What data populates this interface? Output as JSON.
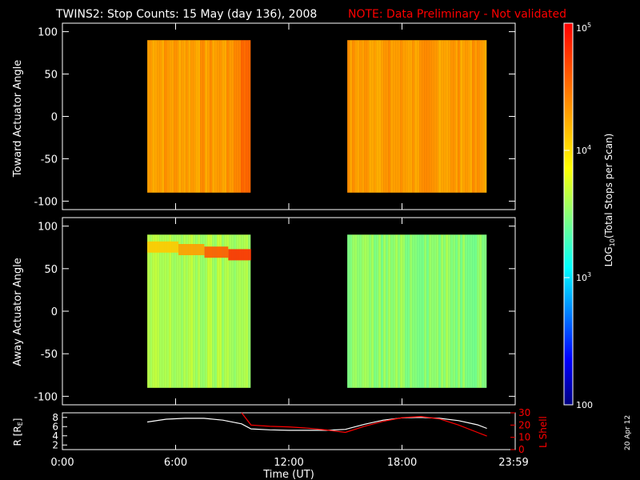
{
  "title_main": "TWINS2: Stop Counts: 15 May (day 136), 2008",
  "title_note": "NOTE: Data Preliminary - Not validated",
  "datestamp": "20 Apr 12",
  "colors": {
    "note": "#ff0000",
    "lshell": "#ff0000",
    "radius": "#ffffff",
    "frame": "#ffffff"
  },
  "chart_data": [
    {
      "type": "heatmap",
      "ylabel": "Toward Actuator Angle",
      "ylim": [
        -110,
        110
      ],
      "yticks": [
        "100",
        "50",
        "0",
        "-50",
        "-100"
      ],
      "xlim": [
        0,
        24
      ],
      "coverage_hours": [
        [
          4.5,
          10.0
        ],
        [
          15.1,
          22.5
        ]
      ],
      "angle_range": [
        -90,
        90
      ],
      "dominant_log10_counts": 4.3
    },
    {
      "type": "heatmap",
      "ylabel": "Away Actuator Angle",
      "ylim": [
        -110,
        110
      ],
      "yticks": [
        "100",
        "50",
        "0",
        "-50",
        "-100"
      ],
      "xlim": [
        0,
        24
      ],
      "coverage_hours": [
        [
          4.5,
          10.0
        ],
        [
          15.1,
          22.5
        ]
      ],
      "angle_range": [
        -90,
        90
      ],
      "dominant_log10_counts": 3.6
    },
    {
      "type": "line",
      "xlabel": "Time (UT)",
      "xticks": [
        "0:00",
        "6:00",
        "12:00",
        "18:00",
        "23:59"
      ],
      "ylabel_left": "R [R",
      "ylabel_left_sub": "E",
      "ylabel_left_end": "]",
      "yticks_left": [
        "8",
        "6",
        "4",
        "2"
      ],
      "ylabel_right": "L Shell",
      "yticks_right": [
        "30",
        "20",
        "10",
        "0"
      ],
      "ylim_left": [
        1,
        9
      ],
      "ylim_right": [
        0,
        30
      ],
      "series": [
        {
          "axis": "left",
          "x": [
            4.5,
            5.5,
            6.5,
            7.5,
            8.5,
            9.5,
            10.0,
            11,
            12,
            13,
            14,
            15,
            16,
            17,
            18,
            19,
            20,
            21,
            22,
            22.5
          ],
          "y": [
            7.0,
            7.6,
            7.8,
            7.8,
            7.4,
            6.6,
            5.5,
            5.3,
            5.2,
            5.2,
            5.2,
            5.4,
            6.5,
            7.4,
            7.9,
            8.0,
            7.8,
            7.3,
            6.4,
            5.6
          ]
        },
        {
          "axis": "right",
          "x": [
            9.5,
            10.0,
            11,
            12,
            13,
            14,
            15,
            16,
            17,
            18,
            19,
            20,
            21,
            22,
            22.5
          ],
          "y": [
            32,
            20,
            19,
            18.5,
            17.5,
            16,
            14,
            19,
            23,
            26,
            27,
            25,
            20,
            14,
            11
          ]
        }
      ]
    },
    {
      "type": "colorbar",
      "label": "LOG",
      "label_sub": "10",
      "label_end": "(Total Stops per Scan)",
      "range_log10": [
        2,
        5
      ],
      "ticks": [
        {
          "v": 5,
          "base": "10",
          "exp": "5"
        },
        {
          "v": 4,
          "base": "10",
          "exp": "4"
        },
        {
          "v": 3,
          "base": "10",
          "exp": "3"
        },
        {
          "v": 2,
          "base": "100",
          "exp": ""
        }
      ]
    }
  ]
}
